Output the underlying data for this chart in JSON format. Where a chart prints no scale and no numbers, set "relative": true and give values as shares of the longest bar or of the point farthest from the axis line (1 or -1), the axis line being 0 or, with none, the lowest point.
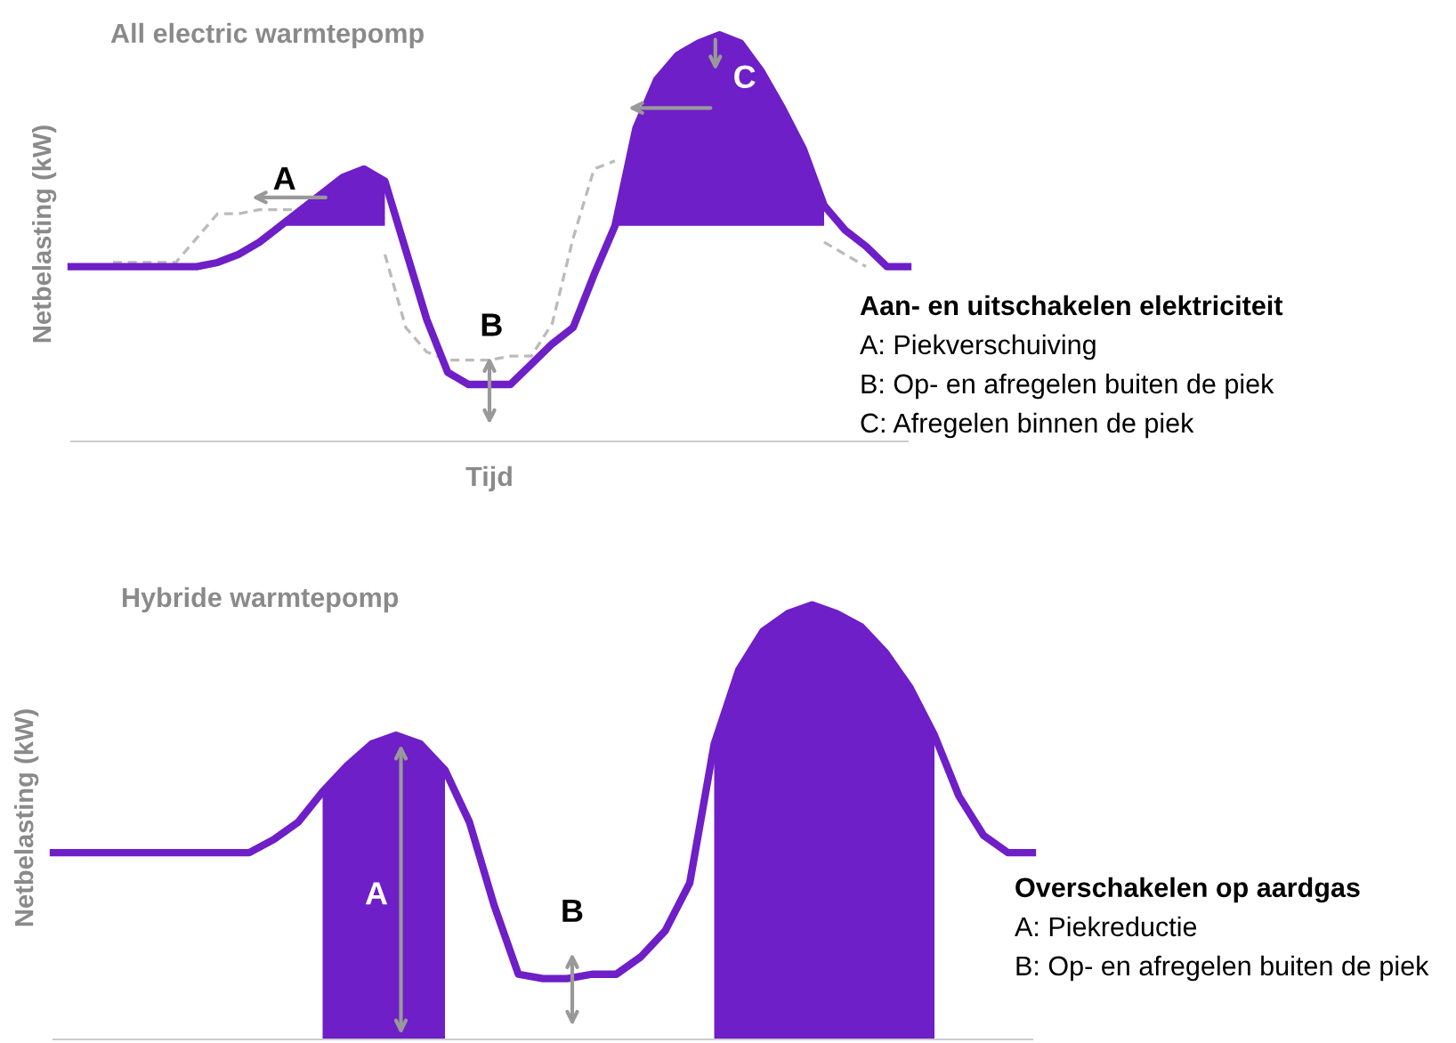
{
  "chart_data": [
    {
      "type": "line",
      "title": "All electric warmtepomp",
      "xlabel": "Tijd",
      "ylabel": "Netbelasting (kW)",
      "relative": true,
      "tick_labels": false,
      "grid": false,
      "marker": "none",
      "categories": [
        null,
        null,
        null,
        null,
        null,
        null,
        null,
        null,
        null,
        null,
        null,
        null,
        null,
        null,
        null,
        null,
        null,
        null,
        null,
        null,
        null,
        null,
        null,
        null,
        null,
        null,
        null,
        null,
        null,
        null,
        null,
        null,
        null,
        null,
        null,
        null,
        null,
        null,
        null,
        null,
        null
      ],
      "series": [
        {
          "color": "#bbbbbb",
          "line_style": "dashed",
          "values": [
            null,
            null,
            0.44,
            0.44,
            0.44,
            0.44,
            0.5,
            0.56,
            0.56,
            0.57,
            0.57,
            0.57,
            0.58,
            null,
            null,
            0.46,
            0.28,
            0.22,
            0.2,
            0.2,
            0.2,
            0.21,
            0.21,
            0.29,
            0.5,
            0.67,
            0.69,
            null,
            null,
            null,
            null,
            null,
            null,
            null,
            null,
            null,
            0.49,
            0.46,
            0.43,
            null,
            null
          ]
        },
        {
          "color": "#6e1fc7",
          "line_style": "solid",
          "values": [
            0.43,
            0.43,
            0.43,
            0.43,
            0.43,
            0.43,
            0.43,
            0.44,
            0.46,
            0.49,
            0.53,
            0.57,
            0.61,
            0.65,
            0.67,
            0.64,
            0.47,
            0.3,
            0.17,
            0.14,
            0.14,
            0.14,
            0.19,
            0.24,
            0.28,
            0.41,
            0.53,
            0.77,
            0.89,
            0.95,
            0.98,
            1.0,
            0.98,
            0.91,
            0.82,
            0.72,
            0.58,
            0.52,
            0.48,
            0.43,
            0.43
          ],
          "lower": [
            null,
            null,
            null,
            null,
            null,
            null,
            null,
            null,
            null,
            null,
            0.53,
            0.53,
            0.53,
            0.53,
            0.53,
            0.53,
            null,
            null,
            null,
            null,
            null,
            null,
            null,
            null,
            null,
            null,
            0.53,
            0.53,
            0.53,
            0.53,
            0.53,
            0.53,
            0.53,
            0.53,
            0.53,
            0.53,
            0.53,
            null,
            null,
            null,
            null
          ],
          "upper": [
            null,
            null,
            null,
            null,
            null,
            null,
            null,
            null,
            null,
            null,
            0.53,
            0.57,
            0.61,
            0.65,
            0.67,
            0.64,
            null,
            null,
            null,
            null,
            null,
            null,
            null,
            null,
            null,
            null,
            0.53,
            0.77,
            0.89,
            0.95,
            0.98,
            1.0,
            0.98,
            0.91,
            0.82,
            0.72,
            0.58,
            null,
            null,
            null,
            null
          ]
        }
      ],
      "annotations": [
        "A",
        "B",
        "C",
        "Aan- en uitschakelen elektriciteit",
        "A: Piekverschuiving",
        "B: Op- en afregelen buiten de piek",
        "C: Afregelen binnen de piek"
      ]
    },
    {
      "type": "line",
      "title": "Hybride warmtepomp",
      "ylabel": "Netbelasting (kW)",
      "relative": true,
      "tick_labels": false,
      "grid": false,
      "marker": "none",
      "categories": [
        null,
        null,
        null,
        null,
        null,
        null,
        null,
        null,
        null,
        null,
        null,
        null,
        null,
        null,
        null,
        null,
        null,
        null,
        null,
        null,
        null,
        null,
        null,
        null,
        null,
        null,
        null,
        null,
        null,
        null,
        null,
        null,
        null,
        null,
        null,
        null,
        null,
        null,
        null,
        null,
        null
      ],
      "series": [
        {
          "color": "#6e1fc7",
          "line_style": "solid",
          "values": [
            0.43,
            0.43,
            0.43,
            0.43,
            0.43,
            0.43,
            0.43,
            0.43,
            0.43,
            0.46,
            0.5,
            0.57,
            0.63,
            0.68,
            0.7,
            0.68,
            0.62,
            0.5,
            0.31,
            0.15,
            0.14,
            0.14,
            0.15,
            0.15,
            0.19,
            0.25,
            0.36,
            0.68,
            0.85,
            0.94,
            0.98,
            1.0,
            0.98,
            0.95,
            0.89,
            0.81,
            0.7,
            0.56,
            0.47,
            0.43,
            0.43
          ],
          "lower": [
            null,
            null,
            null,
            null,
            null,
            null,
            null,
            null,
            null,
            null,
            null,
            0,
            0,
            0,
            0,
            0,
            0,
            null,
            null,
            null,
            null,
            null,
            null,
            null,
            null,
            null,
            null,
            0,
            0,
            0,
            0,
            0,
            0,
            0,
            0,
            0,
            0,
            null,
            null,
            null,
            null
          ],
          "upper": [
            null,
            null,
            null,
            null,
            null,
            null,
            null,
            null,
            null,
            null,
            null,
            0.57,
            0.63,
            0.68,
            0.7,
            0.68,
            0.62,
            null,
            null,
            null,
            null,
            null,
            null,
            null,
            null,
            null,
            null,
            0.68,
            0.85,
            0.94,
            0.98,
            1.0,
            0.98,
            0.95,
            0.89,
            0.81,
            0.7,
            null,
            null,
            null,
            null
          ]
        }
      ],
      "annotations": [
        "A",
        "B",
        "Overschakelen op aardgas",
        "A: Piekreductie",
        "B: Op- en afregelen buiten de piek"
      ]
    }
  ]
}
